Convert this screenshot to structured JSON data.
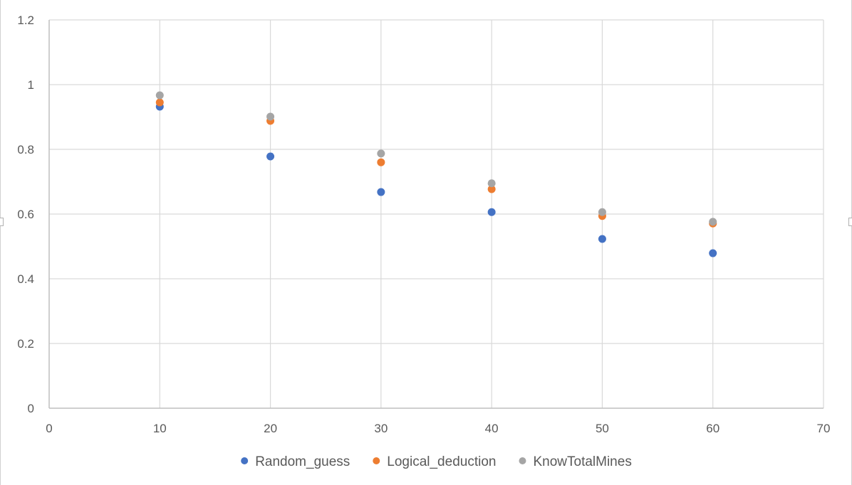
{
  "chart_data": {
    "type": "scatter",
    "title": "",
    "xlabel": "",
    "ylabel": "",
    "xlim": [
      0,
      70
    ],
    "ylim": [
      0,
      1.2
    ],
    "x_ticks": [
      0,
      10,
      20,
      30,
      40,
      50,
      60,
      70
    ],
    "y_ticks": [
      0,
      0.2,
      0.4,
      0.6,
      0.8,
      1,
      1.2
    ],
    "x_tick_labels": [
      "0",
      "10",
      "20",
      "30",
      "40",
      "50",
      "60",
      "70"
    ],
    "y_tick_labels": [
      "0",
      "0.2",
      "0.4",
      "0.6",
      "0.8",
      "1",
      "1.2"
    ],
    "grid": true,
    "legend_position": "bottom",
    "series": [
      {
        "name": "Random_guess",
        "color": "#4472C4",
        "x": [
          10,
          20,
          30,
          40,
          50,
          60
        ],
        "y": [
          0.932,
          0.778,
          0.668,
          0.606,
          0.523,
          0.479
        ]
      },
      {
        "name": "Logical_deduction",
        "color": "#ED7D31",
        "x": [
          10,
          20,
          30,
          40,
          50,
          60
        ],
        "y": [
          0.945,
          0.888,
          0.76,
          0.677,
          0.594,
          0.571
        ]
      },
      {
        "name": "KnowTotalMines",
        "color": "#A5A5A5",
        "x": [
          10,
          20,
          30,
          40,
          50,
          60
        ],
        "y": [
          0.967,
          0.901,
          0.787,
          0.695,
          0.606,
          0.576
        ]
      }
    ]
  }
}
